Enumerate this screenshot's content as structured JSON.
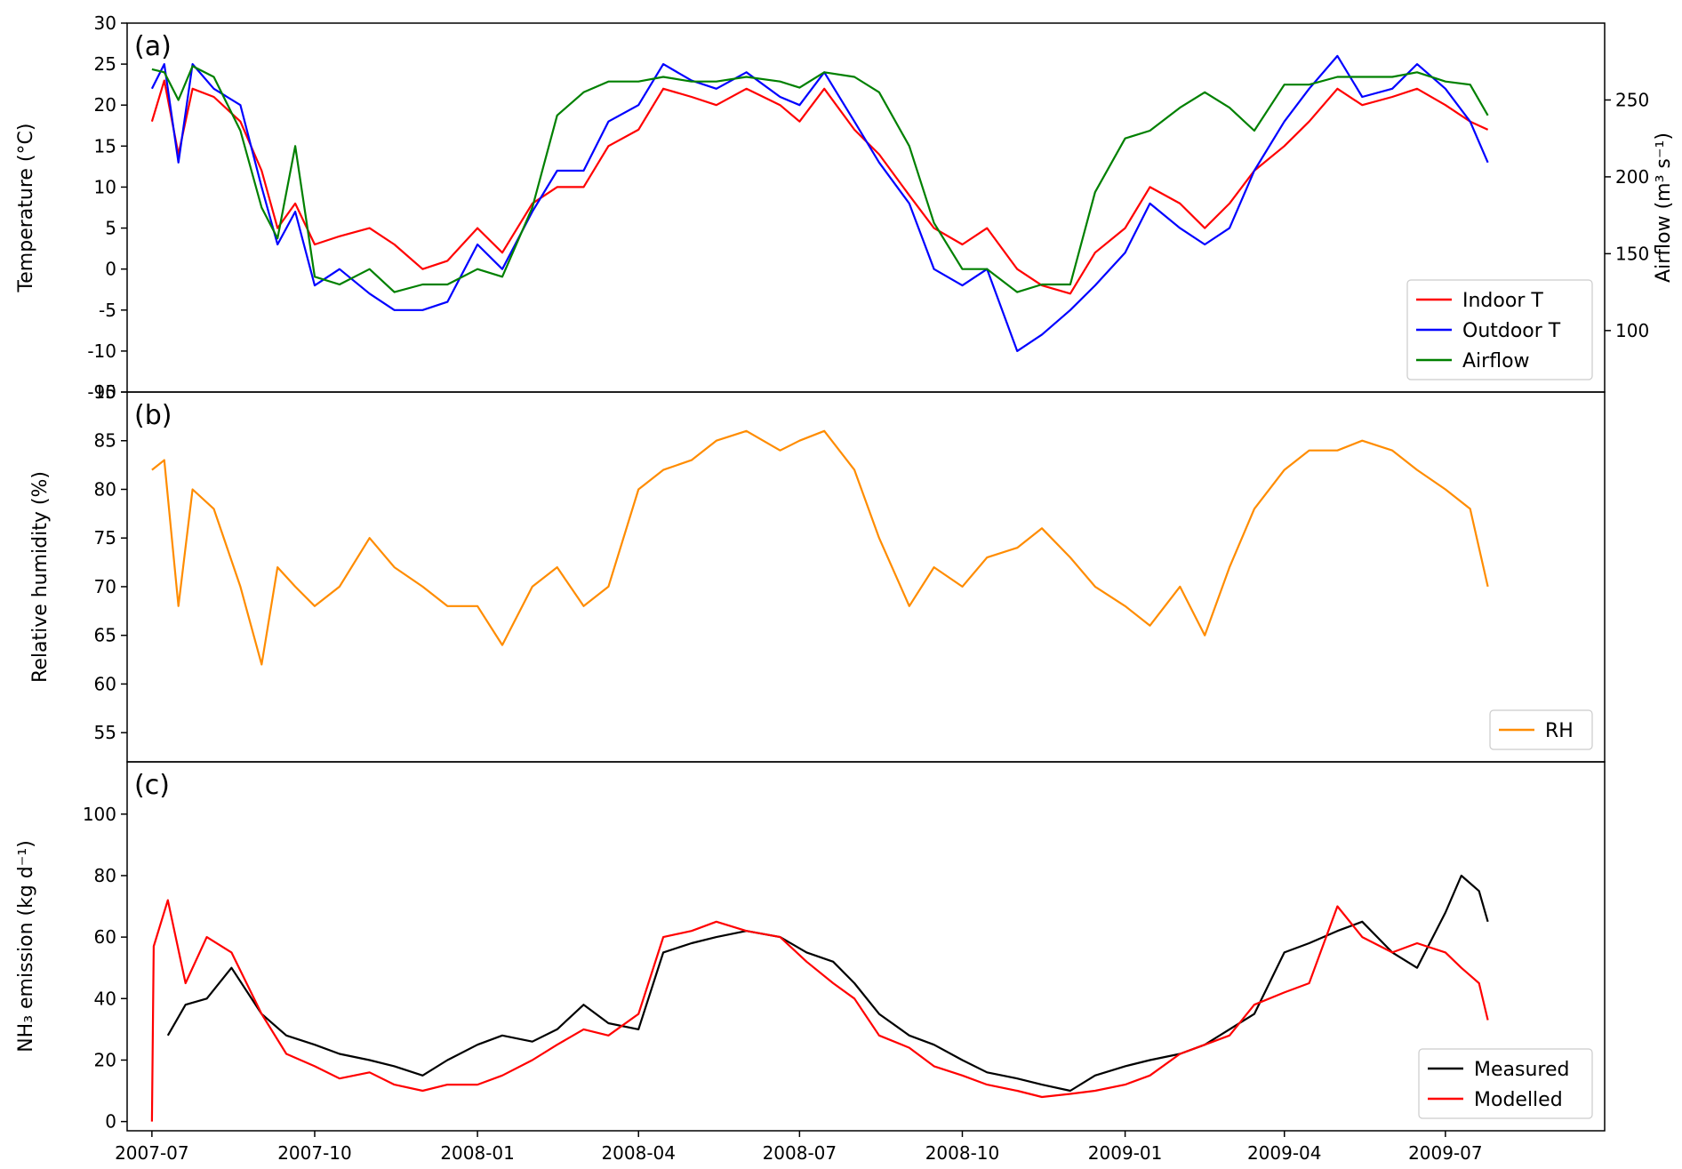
{
  "chart_data": [
    {
      "type": "line",
      "panel_label": "(a)",
      "ylabel": "Temperature (°C)",
      "ylim": [
        -15,
        30
      ],
      "yticks": [
        -15,
        -10,
        -5,
        0,
        5,
        10,
        15,
        20,
        25,
        30
      ],
      "y2label": "Airflow (m³ s⁻¹)",
      "y2lim": [
        60,
        300
      ],
      "y2ticks": [
        100,
        150,
        200,
        250
      ],
      "x_range": [
        "2007-06-17",
        "2009-09-29"
      ],
      "legend_position": "bottom-right",
      "grid": false,
      "series": [
        {
          "name": "Indoor T",
          "color": "#ff0000",
          "axis": "left",
          "x": [
            "2007-07-01",
            "2007-07-08",
            "2007-07-16",
            "2007-07-24",
            "2007-08-05",
            "2007-08-20",
            "2007-09-01",
            "2007-09-10",
            "2007-09-20",
            "2007-10-01",
            "2007-10-15",
            "2007-11-01",
            "2007-11-15",
            "2007-12-01",
            "2007-12-15",
            "2008-01-01",
            "2008-01-15",
            "2008-02-01",
            "2008-02-15",
            "2008-03-01",
            "2008-03-15",
            "2008-04-01",
            "2008-04-15",
            "2008-05-01",
            "2008-05-15",
            "2008-06-01",
            "2008-06-20",
            "2008-07-01",
            "2008-07-15",
            "2008-08-01",
            "2008-08-15",
            "2008-09-01",
            "2008-09-15",
            "2008-10-01",
            "2008-10-15",
            "2008-11-01",
            "2008-11-15",
            "2008-12-01",
            "2008-12-15",
            "2009-01-01",
            "2009-01-15",
            "2009-02-01",
            "2009-02-15",
            "2009-03-01",
            "2009-03-15",
            "2009-04-01",
            "2009-04-15",
            "2009-05-01",
            "2009-05-15",
            "2009-06-01",
            "2009-06-15",
            "2009-07-01",
            "2009-07-15",
            "2009-07-25"
          ],
          "y": [
            18,
            23,
            14,
            22,
            21,
            18,
            12,
            5,
            8,
            3,
            4,
            5,
            3,
            0,
            1,
            5,
            2,
            8,
            10,
            10,
            15,
            17,
            22,
            21,
            20,
            22,
            20,
            18,
            22,
            17,
            14,
            9,
            5,
            3,
            5,
            0,
            -2,
            -3,
            2,
            5,
            10,
            8,
            5,
            8,
            12,
            15,
            18,
            22,
            20,
            21,
            22,
            20,
            18,
            17
          ]
        },
        {
          "name": "Outdoor T",
          "color": "#0000ff",
          "axis": "left",
          "x": [
            "2007-07-01",
            "2007-07-08",
            "2007-07-16",
            "2007-07-24",
            "2007-08-05",
            "2007-08-20",
            "2007-09-01",
            "2007-09-10",
            "2007-09-20",
            "2007-10-01",
            "2007-10-15",
            "2007-11-01",
            "2007-11-15",
            "2007-12-01",
            "2007-12-15",
            "2008-01-01",
            "2008-01-15",
            "2008-02-01",
            "2008-02-15",
            "2008-03-01",
            "2008-03-15",
            "2008-04-01",
            "2008-04-15",
            "2008-05-01",
            "2008-05-15",
            "2008-06-01",
            "2008-06-20",
            "2008-07-01",
            "2008-07-15",
            "2008-08-01",
            "2008-08-15",
            "2008-09-01",
            "2008-09-15",
            "2008-10-01",
            "2008-10-15",
            "2008-11-01",
            "2008-11-15",
            "2008-12-01",
            "2008-12-15",
            "2009-01-01",
            "2009-01-15",
            "2009-02-01",
            "2009-02-15",
            "2009-03-01",
            "2009-03-15",
            "2009-04-01",
            "2009-04-15",
            "2009-05-01",
            "2009-05-15",
            "2009-06-01",
            "2009-06-15",
            "2009-07-01",
            "2009-07-15",
            "2009-07-25"
          ],
          "y": [
            22,
            25,
            13,
            25,
            22,
            20,
            10,
            3,
            7,
            -2,
            0,
            -3,
            -5,
            -5,
            -4,
            3,
            0,
            7,
            12,
            12,
            18,
            20,
            25,
            23,
            22,
            24,
            21,
            20,
            24,
            18,
            13,
            8,
            0,
            -2,
            0,
            -10,
            -8,
            -5,
            -2,
            2,
            8,
            5,
            3,
            5,
            12,
            18,
            22,
            26,
            21,
            22,
            25,
            22,
            18,
            13
          ]
        },
        {
          "name": "Airflow",
          "color": "#008000",
          "axis": "right",
          "x": [
            "2007-07-01",
            "2007-07-08",
            "2007-07-16",
            "2007-07-24",
            "2007-08-05",
            "2007-08-20",
            "2007-09-01",
            "2007-09-10",
            "2007-09-20",
            "2007-10-01",
            "2007-10-15",
            "2007-11-01",
            "2007-11-15",
            "2007-12-01",
            "2007-12-15",
            "2008-01-01",
            "2008-01-15",
            "2008-02-01",
            "2008-02-15",
            "2008-03-01",
            "2008-03-15",
            "2008-04-01",
            "2008-04-15",
            "2008-05-01",
            "2008-05-15",
            "2008-06-01",
            "2008-06-20",
            "2008-07-01",
            "2008-07-15",
            "2008-08-01",
            "2008-08-15",
            "2008-09-01",
            "2008-09-15",
            "2008-10-01",
            "2008-10-15",
            "2008-11-01",
            "2008-11-15",
            "2008-12-01",
            "2008-12-15",
            "2009-01-01",
            "2009-01-15",
            "2009-02-01",
            "2009-02-15",
            "2009-03-01",
            "2009-03-15",
            "2009-04-01",
            "2009-04-15",
            "2009-05-01",
            "2009-05-15",
            "2009-06-01",
            "2009-06-15",
            "2009-07-01",
            "2009-07-15",
            "2009-07-25"
          ],
          "y": [
            270,
            268,
            250,
            272,
            265,
            230,
            180,
            160,
            220,
            135,
            130,
            140,
            125,
            130,
            130,
            140,
            135,
            180,
            240,
            255,
            262,
            262,
            265,
            262,
            262,
            265,
            262,
            258,
            268,
            265,
            255,
            220,
            170,
            140,
            140,
            125,
            130,
            130,
            190,
            225,
            230,
            245,
            255,
            245,
            230,
            260,
            260,
            265,
            265,
            265,
            268,
            262,
            260,
            240
          ]
        }
      ]
    },
    {
      "type": "line",
      "panel_label": "(b)",
      "ylabel": "Relative humidity  (%)",
      "ylim": [
        52,
        90
      ],
      "yticks": [
        55,
        60,
        65,
        70,
        75,
        80,
        85,
        90
      ],
      "x_range": [
        "2007-06-17",
        "2009-09-29"
      ],
      "legend_position": "bottom-right",
      "grid": false,
      "series": [
        {
          "name": "RH",
          "color": "#ff8c00",
          "x": [
            "2007-07-01",
            "2007-07-08",
            "2007-07-16",
            "2007-07-24",
            "2007-08-05",
            "2007-08-20",
            "2007-09-01",
            "2007-09-10",
            "2007-09-20",
            "2007-10-01",
            "2007-10-15",
            "2007-11-01",
            "2007-11-15",
            "2007-12-01",
            "2007-12-15",
            "2008-01-01",
            "2008-01-15",
            "2008-02-01",
            "2008-02-15",
            "2008-03-01",
            "2008-03-15",
            "2008-04-01",
            "2008-04-15",
            "2008-05-01",
            "2008-05-15",
            "2008-06-01",
            "2008-06-20",
            "2008-07-01",
            "2008-07-15",
            "2008-08-01",
            "2008-08-15",
            "2008-09-01",
            "2008-09-15",
            "2008-10-01",
            "2008-10-15",
            "2008-11-01",
            "2008-11-15",
            "2008-12-01",
            "2008-12-15",
            "2009-01-01",
            "2009-01-15",
            "2009-02-01",
            "2009-02-15",
            "2009-03-01",
            "2009-03-15",
            "2009-04-01",
            "2009-04-15",
            "2009-05-01",
            "2009-05-15",
            "2009-06-01",
            "2009-06-15",
            "2009-07-01",
            "2009-07-15",
            "2009-07-25"
          ],
          "y": [
            82,
            83,
            68,
            80,
            78,
            70,
            62,
            72,
            70,
            68,
            70,
            75,
            72,
            70,
            68,
            68,
            64,
            70,
            72,
            68,
            70,
            80,
            82,
            83,
            85,
            86,
            84,
            85,
            86,
            82,
            75,
            68,
            72,
            70,
            73,
            74,
            76,
            73,
            70,
            68,
            66,
            70,
            65,
            72,
            78,
            82,
            84,
            84,
            85,
            84,
            82,
            80,
            78,
            70
          ]
        }
      ]
    },
    {
      "type": "line",
      "panel_label": "(c)",
      "ylabel": "NH₃ emission (kg d⁻¹)",
      "ylim": [
        -3,
        117
      ],
      "yticks": [
        0,
        20,
        40,
        60,
        80,
        100
      ],
      "x_range": [
        "2007-06-17",
        "2009-09-29"
      ],
      "xticks": [
        "2007-07",
        "2007-10",
        "2008-01",
        "2008-04",
        "2008-07",
        "2008-10",
        "2009-01",
        "2009-04",
        "2009-07"
      ],
      "legend_position": "bottom-right",
      "grid": false,
      "series": [
        {
          "name": "Measured",
          "color": "#000000",
          "x": [
            "2007-07-10",
            "2007-07-20",
            "2007-08-01",
            "2007-08-15",
            "2007-09-01",
            "2007-09-15",
            "2007-10-01",
            "2007-10-15",
            "2007-11-01",
            "2007-11-15",
            "2007-12-01",
            "2007-12-15",
            "2008-01-01",
            "2008-01-15",
            "2008-02-01",
            "2008-02-15",
            "2008-03-01",
            "2008-03-15",
            "2008-04-01",
            "2008-04-15",
            "2008-05-01",
            "2008-05-15",
            "2008-06-01",
            "2008-06-20",
            "2008-07-05",
            "2008-07-20",
            "2008-08-01",
            "2008-08-15",
            "2008-09-01",
            "2008-09-15",
            "2008-10-01",
            "2008-10-15",
            "2008-11-01",
            "2008-11-15",
            "2008-12-01",
            "2008-12-15",
            "2009-01-01",
            "2009-01-15",
            "2009-02-01",
            "2009-02-15",
            "2009-03-01",
            "2009-03-15",
            "2009-04-01",
            "2009-04-15",
            "2009-05-01",
            "2009-05-15",
            "2009-06-01",
            "2009-06-15",
            "2009-07-01",
            "2009-07-10",
            "2009-07-20",
            "2009-07-25"
          ],
          "y": [
            28,
            38,
            40,
            50,
            35,
            28,
            25,
            22,
            20,
            18,
            15,
            20,
            25,
            28,
            26,
            30,
            38,
            32,
            30,
            55,
            58,
            60,
            62,
            60,
            55,
            52,
            45,
            35,
            28,
            25,
            20,
            16,
            14,
            12,
            10,
            15,
            18,
            20,
            22,
            25,
            30,
            35,
            55,
            58,
            62,
            65,
            55,
            50,
            68,
            80,
            75,
            65
          ]
        },
        {
          "name": "Modelled",
          "color": "#ff0000",
          "x": [
            "2007-07-01",
            "2007-07-02",
            "2007-07-10",
            "2007-07-20",
            "2007-08-01",
            "2007-08-15",
            "2007-09-01",
            "2007-09-15",
            "2007-10-01",
            "2007-10-15",
            "2007-11-01",
            "2007-11-15",
            "2007-12-01",
            "2007-12-15",
            "2008-01-01",
            "2008-01-15",
            "2008-02-01",
            "2008-02-15",
            "2008-03-01",
            "2008-03-15",
            "2008-04-01",
            "2008-04-15",
            "2008-05-01",
            "2008-05-15",
            "2008-06-01",
            "2008-06-20",
            "2008-07-05",
            "2008-07-20",
            "2008-08-01",
            "2008-08-15",
            "2008-09-01",
            "2008-09-15",
            "2008-10-01",
            "2008-10-15",
            "2008-11-01",
            "2008-11-15",
            "2008-12-01",
            "2008-12-15",
            "2009-01-01",
            "2009-01-15",
            "2009-02-01",
            "2009-02-15",
            "2009-03-01",
            "2009-03-15",
            "2009-04-01",
            "2009-04-15",
            "2009-05-01",
            "2009-05-15",
            "2009-06-01",
            "2009-06-15",
            "2009-07-01",
            "2009-07-10",
            "2009-07-20",
            "2009-07-25"
          ],
          "y": [
            0,
            57,
            72,
            45,
            60,
            55,
            35,
            22,
            18,
            14,
            16,
            12,
            10,
            12,
            12,
            15,
            20,
            25,
            30,
            28,
            35,
            60,
            62,
            65,
            62,
            60,
            52,
            45,
            40,
            28,
            24,
            18,
            15,
            12,
            10,
            8,
            9,
            10,
            12,
            15,
            22,
            25,
            28,
            38,
            42,
            45,
            70,
            60,
            55,
            58,
            55,
            50,
            45,
            33
          ]
        }
      ]
    }
  ]
}
